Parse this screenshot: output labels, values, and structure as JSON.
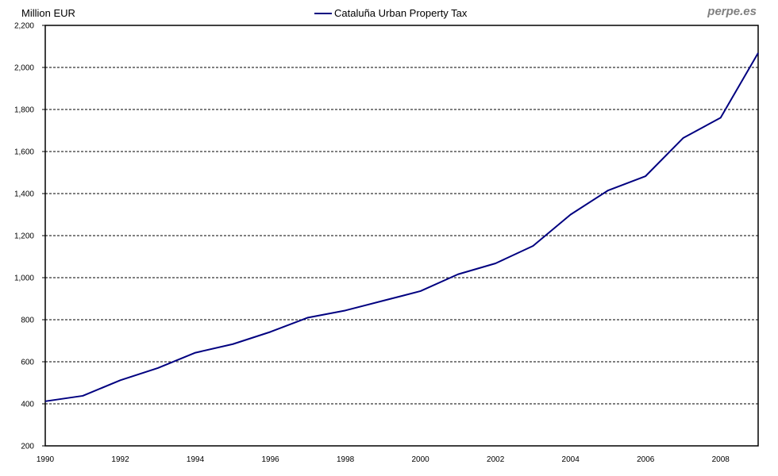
{
  "chart_data": {
    "type": "line",
    "title": "",
    "ylabel": "Million EUR",
    "xlabel": "",
    "ylim": [
      200,
      2200
    ],
    "yticks": [
      200,
      400,
      600,
      800,
      1000,
      1200,
      1400,
      1600,
      1800,
      2000,
      2200
    ],
    "ytick_labels": [
      "200",
      "400",
      "600",
      "800",
      "1,000",
      "1,200",
      "1,400",
      "1,600",
      "1,800",
      "2,000",
      "2,200"
    ],
    "xlim": [
      1990,
      2009
    ],
    "xtick_labels": [
      "1990",
      "1992",
      "1994",
      "1996",
      "1998",
      "2000",
      "2002",
      "2004",
      "2006",
      "2008"
    ],
    "grid": "horizontal dashed",
    "legend_placement": "top-center",
    "x": [
      1990,
      1991,
      1992,
      1993,
      1994,
      1995,
      1996,
      1997,
      1998,
      1999,
      2000,
      2001,
      2002,
      2003,
      2004,
      2005,
      2006,
      2007,
      2008,
      2009
    ],
    "series": [
      {
        "name": "Cataluña Urban Property Tax",
        "color": "#000080",
        "values": [
          412,
          438,
          512,
          570,
          643,
          684,
          742,
          810,
          844,
          890,
          936,
          1016,
          1068,
          1151,
          1300,
          1415,
          1483,
          1664,
          1761,
          2069
        ]
      }
    ]
  },
  "watermark": "perpe.es"
}
